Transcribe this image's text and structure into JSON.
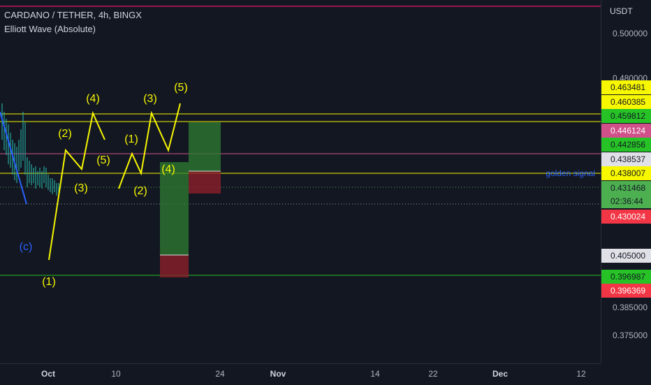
{
  "legend": {
    "symbol_line": "CARDANO / TETHER, 4h, BINGX",
    "indicator": "Elliott Wave (Absolute)"
  },
  "price_axis": {
    "currency": "USDT",
    "ticks": [
      "0.500000",
      "0.480000",
      "0.385000",
      "0.375000"
    ],
    "tags": [
      {
        "text": "0.463481",
        "bg": "#f7f700",
        "fg": "#131722"
      },
      {
        "text": "0.460385",
        "bg": "#f7f700",
        "fg": "#131722"
      },
      {
        "text": "0.459812",
        "bg": "#26c226",
        "fg": "#131722"
      },
      {
        "text": "0.446124",
        "bg": "#d0508a",
        "fg": "#ffffff"
      },
      {
        "text": "0.442856",
        "bg": "#26c226",
        "fg": "#131722"
      },
      {
        "text": "0.438537",
        "bg": "#dfe1e6",
        "fg": "#131722"
      },
      {
        "text": "0.438007",
        "bg": "#f7f700",
        "fg": "#131722"
      },
      {
        "text": "0.431468",
        "bg": "#4caf50",
        "fg": "#131722"
      },
      {
        "text": "02:36:44",
        "bg": "#4caf50",
        "fg": "#131722"
      },
      {
        "text": "0.430024",
        "bg": "#f23645",
        "fg": "#ffffff"
      },
      {
        "text": "0.405000",
        "bg": "#dfe1e6",
        "fg": "#131722"
      },
      {
        "text": "0.396987",
        "bg": "#26c226",
        "fg": "#131722"
      },
      {
        "text": "0.396369",
        "bg": "#f23645",
        "fg": "#ffffff"
      }
    ]
  },
  "time_axis": {
    "labels": [
      "Oct",
      "10",
      "24",
      "Nov",
      "14",
      "22",
      "Dec",
      "12"
    ]
  },
  "annotations": {
    "golden_signal": "golden signal",
    "wave_c": "(c)",
    "waves": [
      "(1)",
      "(2)",
      "(3)",
      "(4)",
      "(5)",
      "(1)",
      "(2)",
      "(3)",
      "(4)",
      "(5)"
    ]
  },
  "colors": {
    "background": "#131722",
    "wave_yellow": "#f7f700",
    "line_green": "#26c226",
    "line_pink": "#d0508a",
    "candle_teal": "#26a69a",
    "wave_blue": "#2962ff"
  }
}
